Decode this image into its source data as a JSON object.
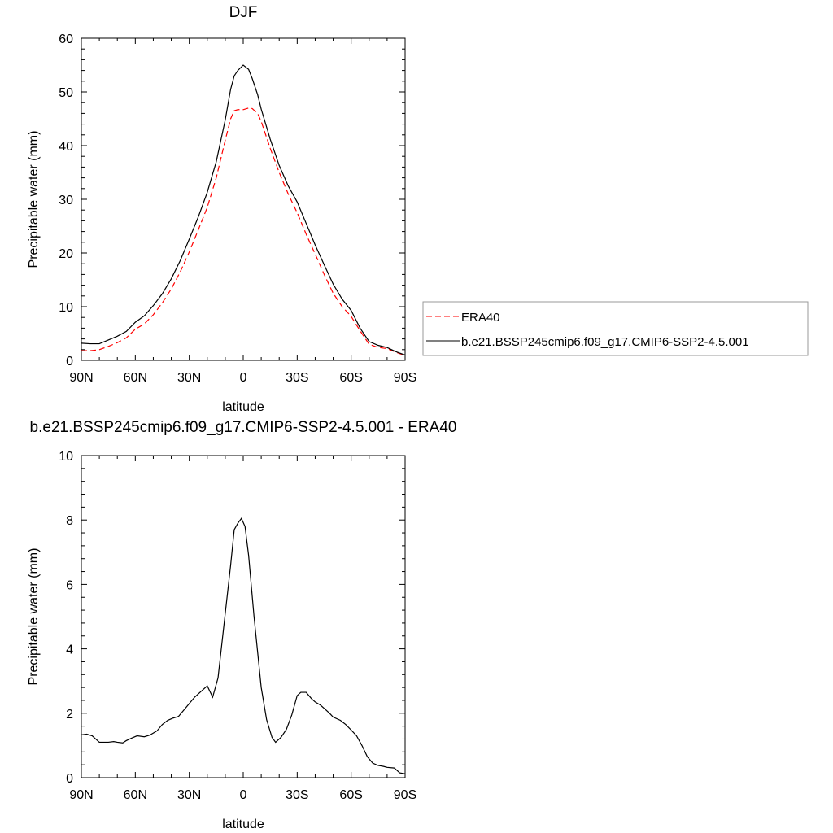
{
  "chart_data": [
    {
      "type": "line",
      "title": "DJF",
      "xlabel": "latitude",
      "ylabel": "Precipitable water (mm)",
      "xticks": [
        "90N",
        "60N",
        "30N",
        "0",
        "30S",
        "60S",
        "90S"
      ],
      "yticks": [
        "0",
        "10",
        "20",
        "30",
        "40",
        "50",
        "60"
      ],
      "xlim": [
        90,
        -90
      ],
      "ylim": [
        0,
        60
      ],
      "legend_position": "right",
      "series": [
        {
          "name": "ERA40",
          "color": "#ff0000",
          "dash": "dashed",
          "x": [
            90,
            85,
            80,
            75,
            70,
            65,
            60,
            55,
            50,
            45,
            40,
            35,
            30,
            25,
            20,
            15,
            10,
            7,
            5,
            3,
            0,
            -3,
            -5,
            -8,
            -10,
            -15,
            -20,
            -25,
            -30,
            -35,
            -40,
            -45,
            -50,
            -55,
            -60,
            -65,
            -70,
            -75,
            -80,
            -85,
            -90
          ],
          "y": [
            1.8,
            1.8,
            2.0,
            2.6,
            3.3,
            4.2,
            5.8,
            6.8,
            8.5,
            10.7,
            13.3,
            16.5,
            20.2,
            24.3,
            28.5,
            34.0,
            41.0,
            45.0,
            46.5,
            46.7,
            46.7,
            47.0,
            46.9,
            46.0,
            44.5,
            39.5,
            35.0,
            31.0,
            27.5,
            23.5,
            19.8,
            16.0,
            12.5,
            10.0,
            8.2,
            5.5,
            3.0,
            2.4,
            2.2,
            1.5,
            0.9
          ]
        },
        {
          "name": "b.e21.BSSP245cmip6.f09_g17.CMIP6-SSP2-4.5.001",
          "color": "#000000",
          "dash": "solid",
          "x": [
            90,
            85,
            80,
            75,
            70,
            65,
            60,
            55,
            50,
            45,
            40,
            35,
            30,
            25,
            20,
            15,
            10,
            7,
            5,
            3,
            0,
            -3,
            -5,
            -8,
            -10,
            -15,
            -20,
            -25,
            -30,
            -35,
            -40,
            -45,
            -50,
            -55,
            -60,
            -65,
            -70,
            -75,
            -80,
            -85,
            -90
          ],
          "y": [
            3.2,
            3.1,
            3.1,
            3.8,
            4.5,
            5.4,
            7.1,
            8.3,
            10.2,
            12.4,
            15.2,
            18.6,
            22.6,
            26.7,
            31.3,
            37.0,
            44.8,
            50.5,
            53.0,
            54.0,
            55.0,
            54.2,
            52.5,
            49.5,
            46.8,
            41.2,
            36.3,
            32.5,
            29.5,
            25.5,
            21.5,
            17.8,
            14.2,
            11.4,
            9.3,
            6.0,
            3.5,
            2.8,
            2.4,
            1.6,
            1.0
          ]
        }
      ]
    },
    {
      "type": "line",
      "title": "b.e21.BSSP245cmip6.f09_g17.CMIP6-SSP2-4.5.001 - ERA40",
      "xlabel": "latitude",
      "ylabel": "Precipitable water (mm)",
      "xticks": [
        "90N",
        "60N",
        "30N",
        "0",
        "30S",
        "60S",
        "90S"
      ],
      "yticks": [
        "0",
        "2",
        "4",
        "6",
        "8",
        "10"
      ],
      "xlim": [
        90,
        -90
      ],
      "ylim": [
        0,
        10
      ],
      "series": [
        {
          "color": "#000000",
          "dash": "solid",
          "x": [
            90,
            87,
            84,
            80,
            75,
            72,
            70,
            67,
            65,
            62,
            59,
            55,
            52,
            48,
            45,
            42,
            39,
            36,
            33,
            30,
            27,
            23,
            20,
            17,
            14,
            10,
            7,
            5,
            3,
            1,
            -1,
            -3,
            -6,
            -10,
            -13,
            -16,
            -18,
            -21,
            -24,
            -27,
            -30,
            -32,
            -35,
            -38,
            -40,
            -43,
            -45,
            -48,
            -50,
            -54,
            -57,
            -60,
            -63,
            -66,
            -69,
            -72,
            -75,
            -78,
            -80,
            -84,
            -87,
            -90
          ],
          "y": [
            1.33,
            1.35,
            1.3,
            1.1,
            1.1,
            1.12,
            1.1,
            1.08,
            1.15,
            1.23,
            1.3,
            1.27,
            1.32,
            1.45,
            1.65,
            1.78,
            1.85,
            1.9,
            2.1,
            2.3,
            2.5,
            2.7,
            2.85,
            2.5,
            3.1,
            5.1,
            6.6,
            7.7,
            7.9,
            8.05,
            7.8,
            6.9,
            5.0,
            2.8,
            1.8,
            1.25,
            1.1,
            1.25,
            1.5,
            1.95,
            2.55,
            2.65,
            2.65,
            2.45,
            2.35,
            2.25,
            2.15,
            2.0,
            1.88,
            1.78,
            1.65,
            1.48,
            1.3,
            1.0,
            0.65,
            0.45,
            0.38,
            0.35,
            0.32,
            0.3,
            0.15,
            0.12
          ]
        }
      ]
    }
  ]
}
